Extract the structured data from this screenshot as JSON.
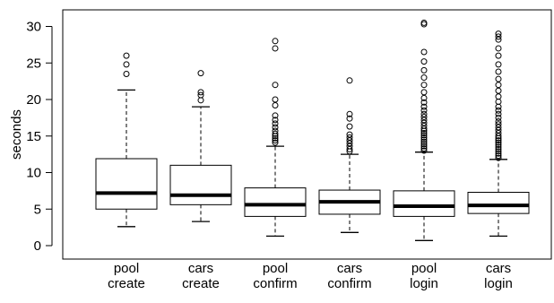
{
  "chart_data": {
    "type": "boxplot",
    "ylabel": "seconds",
    "ylim": [
      0,
      31
    ],
    "yticks": [
      0,
      5,
      10,
      15,
      20,
      25,
      30
    ],
    "grid": false,
    "legend": "none",
    "colors": {
      "stroke": "#000000",
      "background": "#ffffff"
    },
    "categories": [
      [
        "pool",
        "create"
      ],
      [
        "cars",
        "create"
      ],
      [
        "pool",
        "confirm"
      ],
      [
        "cars",
        "confirm"
      ],
      [
        "pool",
        "login"
      ],
      [
        "cars",
        "login"
      ]
    ],
    "boxes": [
      {
        "whisker_low": 2.6,
        "q1": 5.0,
        "median": 7.2,
        "q3": 11.9,
        "whisker_high": 21.3,
        "outliers": [
          23.5,
          24.8,
          26.0
        ]
      },
      {
        "whisker_low": 3.3,
        "q1": 5.6,
        "median": 6.9,
        "q3": 11.0,
        "whisker_high": 19.0,
        "outliers": [
          19.9,
          20.6,
          21.0,
          23.6
        ]
      },
      {
        "whisker_low": 1.3,
        "q1": 4.0,
        "median": 5.6,
        "q3": 7.9,
        "whisker_high": 13.6,
        "outliers": [
          14.1,
          14.4,
          14.7,
          15.0,
          15.3,
          15.7,
          16.2,
          16.7,
          17.2,
          17.8,
          19.2,
          20.0,
          22.0,
          27.0,
          28.0
        ]
      },
      {
        "whisker_low": 1.8,
        "q1": 4.3,
        "median": 6.0,
        "q3": 7.6,
        "whisker_high": 12.5,
        "outliers": [
          12.9,
          13.2,
          13.6,
          14.0,
          14.4,
          14.8,
          15.2,
          16.3,
          17.4,
          18.0,
          22.6
        ]
      },
      {
        "whisker_low": 0.7,
        "q1": 4.0,
        "median": 5.4,
        "q3": 7.5,
        "whisker_high": 12.8,
        "outliers": [
          13.0,
          13.3,
          13.6,
          13.9,
          14.2,
          14.5,
          14.8,
          15.1,
          15.4,
          15.7,
          16.0,
          16.4,
          16.8,
          17.2,
          17.6,
          18.0,
          18.5,
          19.0,
          19.6,
          20.2,
          21.0,
          22.0,
          23.0,
          24.0,
          25.2,
          26.5,
          30.3,
          30.5
        ]
      },
      {
        "whisker_low": 1.3,
        "q1": 4.4,
        "median": 5.5,
        "q3": 7.3,
        "whisker_high": 11.8,
        "outliers": [
          12.0,
          12.3,
          12.6,
          12.9,
          13.2,
          13.5,
          13.8,
          14.1,
          14.4,
          14.7,
          15.0,
          15.4,
          15.8,
          16.2,
          16.6,
          17.0,
          17.5,
          18.0,
          18.5,
          19.0,
          19.7,
          20.4,
          21.2,
          22.0,
          22.8,
          23.8,
          24.8,
          26.0,
          27.0,
          28.2,
          28.6,
          29.0
        ]
      }
    ]
  }
}
